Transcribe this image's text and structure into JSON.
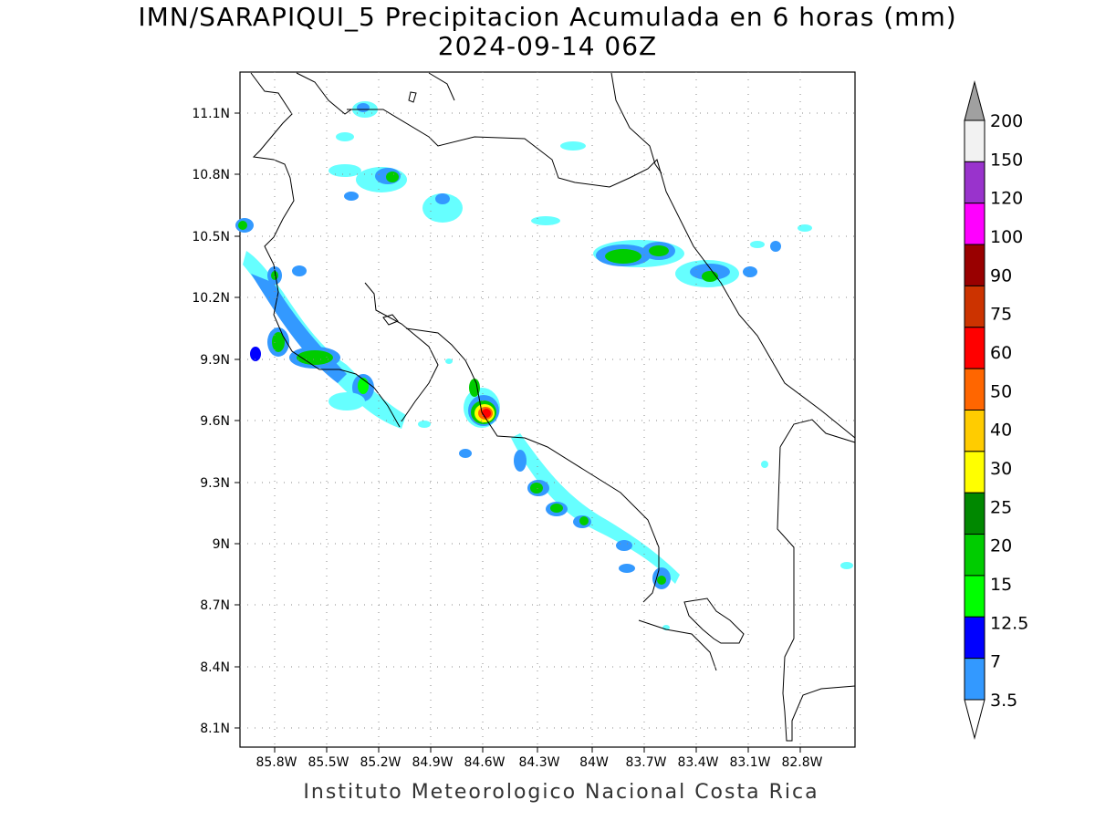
{
  "title_line1": "IMN/SARAPIQUI_5 Precipitacion Acumulada en 6 horas (mm)",
  "title_line2": "2024-09-14 06Z",
  "credit": "Instituto Meteorologico Nacional Costa Rica",
  "lat_labels": [
    "11.1N",
    "10.8N",
    "10.5N",
    "10.2N",
    "9.9N",
    "9.6N",
    "9.3N",
    "9N",
    "8.7N",
    "8.4N",
    "8.1N"
  ],
  "lon_labels": [
    "85.8W",
    "85.5W",
    "85.2W",
    "84.9W",
    "84.6W",
    "84.3W",
    "84W",
    "83.7W",
    "83.4W",
    "83.1W",
    "82.8W"
  ],
  "colorbar": {
    "labels": [
      "200",
      "150",
      "120",
      "100",
      "90",
      "75",
      "60",
      "50",
      "40",
      "30",
      "25",
      "20",
      "15",
      "12.5",
      "7",
      "3.5"
    ],
    "colors": [
      "#a0a0a0",
      "#f2f2f2",
      "#9933cc",
      "#ff00ff",
      "#990000",
      "#cc3300",
      "#ff0000",
      "#ff6600",
      "#ffcc00",
      "#ffff00",
      "#008800",
      "#00cc00",
      "#00ff00",
      "#0000ff",
      "#3399ff",
      "#66ffff"
    ]
  }
}
